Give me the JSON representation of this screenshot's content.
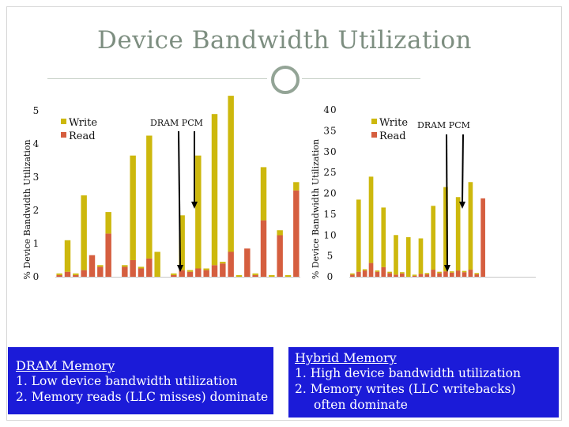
{
  "title": "Device Bandwidth Utilization",
  "colors": {
    "write": "#cdb80d",
    "read": "#d55e3f",
    "panel": "#1b1bd8",
    "title": "#7d8e80"
  },
  "chart_data": [
    {
      "type": "bar",
      "stacked": true,
      "ylabel": "% Device Bandwidth Utilization",
      "ylim": [
        0,
        5
      ],
      "yticks": [
        "0",
        "1",
        "2",
        "3",
        "4",
        "5"
      ],
      "legend": [
        "Write",
        "Read"
      ],
      "legend_position": "top-left",
      "annotation": "DRAM PCM",
      "n_categories": 30,
      "series": [
        {
          "name": "Write",
          "values": [
            0.05,
            0.95,
            0.05,
            2.25,
            0,
            0.05,
            0.65,
            0,
            0.05,
            3.15,
            0.05,
            3.7,
            0.75,
            0,
            0.05,
            1.65,
            0.05,
            3.4,
            0.05,
            4.55,
            0.05,
            4.7,
            0.05,
            0,
            0.05,
            1.6,
            0.05,
            0.15,
            0.05,
            0.25
          ]
        },
        {
          "name": "Read",
          "values": [
            0.05,
            0.15,
            0.05,
            0.2,
            0.65,
            0.3,
            1.3,
            0,
            0.3,
            0.5,
            0.25,
            0.55,
            0,
            0,
            0.05,
            0.2,
            0.15,
            0.25,
            0.2,
            0.35,
            0.4,
            0.75,
            0,
            0.85,
            0.05,
            1.7,
            0,
            1.25,
            0,
            2.6
          ]
        }
      ]
    },
    {
      "type": "bar",
      "stacked": true,
      "ylabel": "% Device Bandwidth Utilization",
      "ylim": [
        0,
        40
      ],
      "yticks": [
        "0",
        "5",
        "10",
        "15",
        "20",
        "25",
        "30",
        "35",
        "40"
      ],
      "legend": [
        "Write",
        "Read"
      ],
      "legend_position": "top-left",
      "annotation": "DRAM PCM",
      "n_categories": 30,
      "series": [
        {
          "name": "Write",
          "values": [
            0.3,
            17.3,
            0.3,
            20.7,
            0.3,
            14.3,
            0.3,
            9.5,
            0.3,
            9.5,
            0.3,
            8.5,
            0.3,
            15.3,
            0.3,
            20.2,
            0.3,
            17.6,
            0.3,
            21,
            0.3,
            0,
            0,
            0,
            0,
            0,
            0,
            0,
            0,
            0
          ]
        },
        {
          "name": "Read",
          "values": [
            0.5,
            1.2,
            1.5,
            3.3,
            1.2,
            2.3,
            0.9,
            0.5,
            0.8,
            0,
            0.2,
            0.7,
            0.6,
            1.7,
            0.9,
            1.3,
            1,
            1.5,
            1.1,
            1.7,
            0.6,
            18.8,
            0,
            0,
            0,
            0,
            0,
            0,
            0,
            0
          ]
        }
      ]
    }
  ],
  "panels": [
    {
      "heading": "DRAM Memory",
      "lines": [
        "1. Low device bandwidth utilization",
        "2. Memory reads (LLC misses) dominate"
      ]
    },
    {
      "heading": "Hybrid Memory",
      "lines": [
        "1. High device bandwidth utilization",
        "2. Memory writes (LLC writebacks)",
        "often dominate"
      ]
    }
  ]
}
